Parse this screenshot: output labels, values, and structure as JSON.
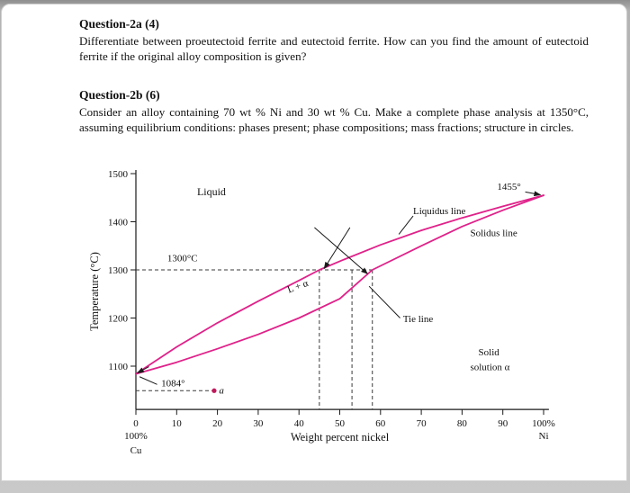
{
  "questions": [
    {
      "title": "Question-2a (4)",
      "body": "Differentiate between proeutectoid ferrite and eutectoid ferrite. How can you find the amount of eutectoid ferrite if the original alloy composition is given?"
    },
    {
      "title": "Question-2b (6)",
      "body": "Consider an alloy containing 70 wt % Ni and 30 wt % Cu. Make a complete phase analysis at 1350°C, assuming equilibrium conditions: phases present; phase compositions; mass fractions; structure in circles."
    }
  ],
  "chart_data": {
    "type": "line",
    "xlabel": "Weight percent nickel",
    "ylabel": "Temperature (°C)",
    "xlim": [
      0,
      100
    ],
    "ylim": [
      1010,
      1500
    ],
    "x_ticks": [
      0,
      10,
      20,
      30,
      40,
      50,
      60,
      70,
      80,
      90,
      100
    ],
    "x_tick_labels": [
      "0",
      "10",
      "20",
      "30",
      "40",
      "50",
      "60",
      "70",
      "80",
      "90",
      "100%"
    ],
    "y_ticks": [
      1100,
      1200,
      1300,
      1400,
      1500
    ],
    "x_axis_left_sub": [
      "100%",
      "Cu"
    ],
    "x_axis_right_sub": "Ni",
    "accent": "#c2185b",
    "key_points": {
      "cu_melting_point_c": 1084,
      "ni_melting_point_c": 1455,
      "tie_line_temp_c": 1300,
      "tie_line_liquid_composition_wt_pct_ni": 45,
      "tie_line_alpha_composition_wt_pct_ni": 58
    },
    "series": [
      {
        "name": "Liquidus",
        "color": "#e0218a",
        "x": [
          0,
          10,
          20,
          30,
          40,
          45,
          50,
          60,
          70,
          80,
          90,
          100
        ],
        "y": [
          1084,
          1140,
          1190,
          1235,
          1278,
          1300,
          1318,
          1352,
          1382,
          1408,
          1432,
          1455
        ]
      },
      {
        "name": "Solidus",
        "color": "#e0218a",
        "x": [
          0,
          10,
          20,
          30,
          40,
          50,
          58,
          70,
          80,
          90,
          100
        ],
        "y": [
          1084,
          1108,
          1136,
          1166,
          1200,
          1240,
          1300,
          1350,
          1390,
          1424,
          1455
        ]
      }
    ],
    "dashed_lines": [
      {
        "x1": 0,
        "t1": 1300,
        "x2": 58,
        "t2": 1300
      },
      {
        "x1": 45,
        "t1": 1300,
        "x2": 45,
        "t2": 1010
      },
      {
        "x1": 53,
        "t1": 1300,
        "x2": 53,
        "t2": 1010
      },
      {
        "x1": 58,
        "t1": 1300,
        "x2": 58,
        "t2": 1010
      },
      {
        "x1": 0,
        "t1": 1049,
        "x2": 19.2,
        "t2": 1049,
        "dot": true
      }
    ],
    "leaders": [
      {
        "x1": 95.5,
        "t1": 1462,
        "x2": 99.2,
        "t2": 1456,
        "arrow": true
      },
      {
        "x1": 3.2,
        "t1": 1099,
        "x2": 0.4,
        "t2": 1086,
        "arrow": true
      },
      {
        "x1": 68,
        "t1": 1412,
        "x2": 64.5,
        "t2": 1374,
        "arrow": false
      },
      {
        "x1": 64.8,
        "t1": 1200,
        "x2": 57.2,
        "t2": 1266,
        "arrow": false
      },
      {
        "x1": 5.2,
        "t1": 1062,
        "x2": 0.9,
        "t2": 1078,
        "arrow": false
      },
      {
        "x1": 52.5,
        "t1": 1388,
        "x2": 46.2,
        "t2": 1303,
        "arrow": true
      },
      {
        "x1": 43.8,
        "t1": 1388,
        "x2": 56.8,
        "t2": 1292,
        "arrow": true
      }
    ],
    "labels": [
      {
        "text": "Liquid",
        "x": 15,
        "t": 1455,
        "size": 12,
        "name": "liquid-label"
      },
      {
        "text": "1455°",
        "x": 88.6,
        "t": 1466,
        "name": "label-1455"
      },
      {
        "text": "Liquidus line",
        "x": 68,
        "t": 1416,
        "name": "liquidus-label"
      },
      {
        "text": "Solidus line",
        "x": 82,
        "t": 1370,
        "name": "solidus-label"
      },
      {
        "text": "L + α",
        "x": 37.5,
        "t": 1252,
        "rotate": -20,
        "name": "l-plus-alpha-label"
      },
      {
        "text": "Tie line",
        "x": 65.5,
        "t": 1192,
        "name": "tie-line-label"
      },
      {
        "text": "Solid",
        "x": 84,
        "t": 1122,
        "name": "solid-label"
      },
      {
        "text": "solution α",
        "x": 82,
        "t": 1092,
        "name": "solution-alpha-label"
      },
      {
        "text": "1300°C",
        "x": 7.7,
        "t": 1318,
        "name": "label-1300"
      },
      {
        "text": "1084°",
        "x": 6.2,
        "t": 1058,
        "name": "label-1084"
      },
      {
        "text": "a",
        "x": 20.4,
        "t": 1043,
        "italic": true,
        "name": "point-a-label"
      }
    ]
  }
}
